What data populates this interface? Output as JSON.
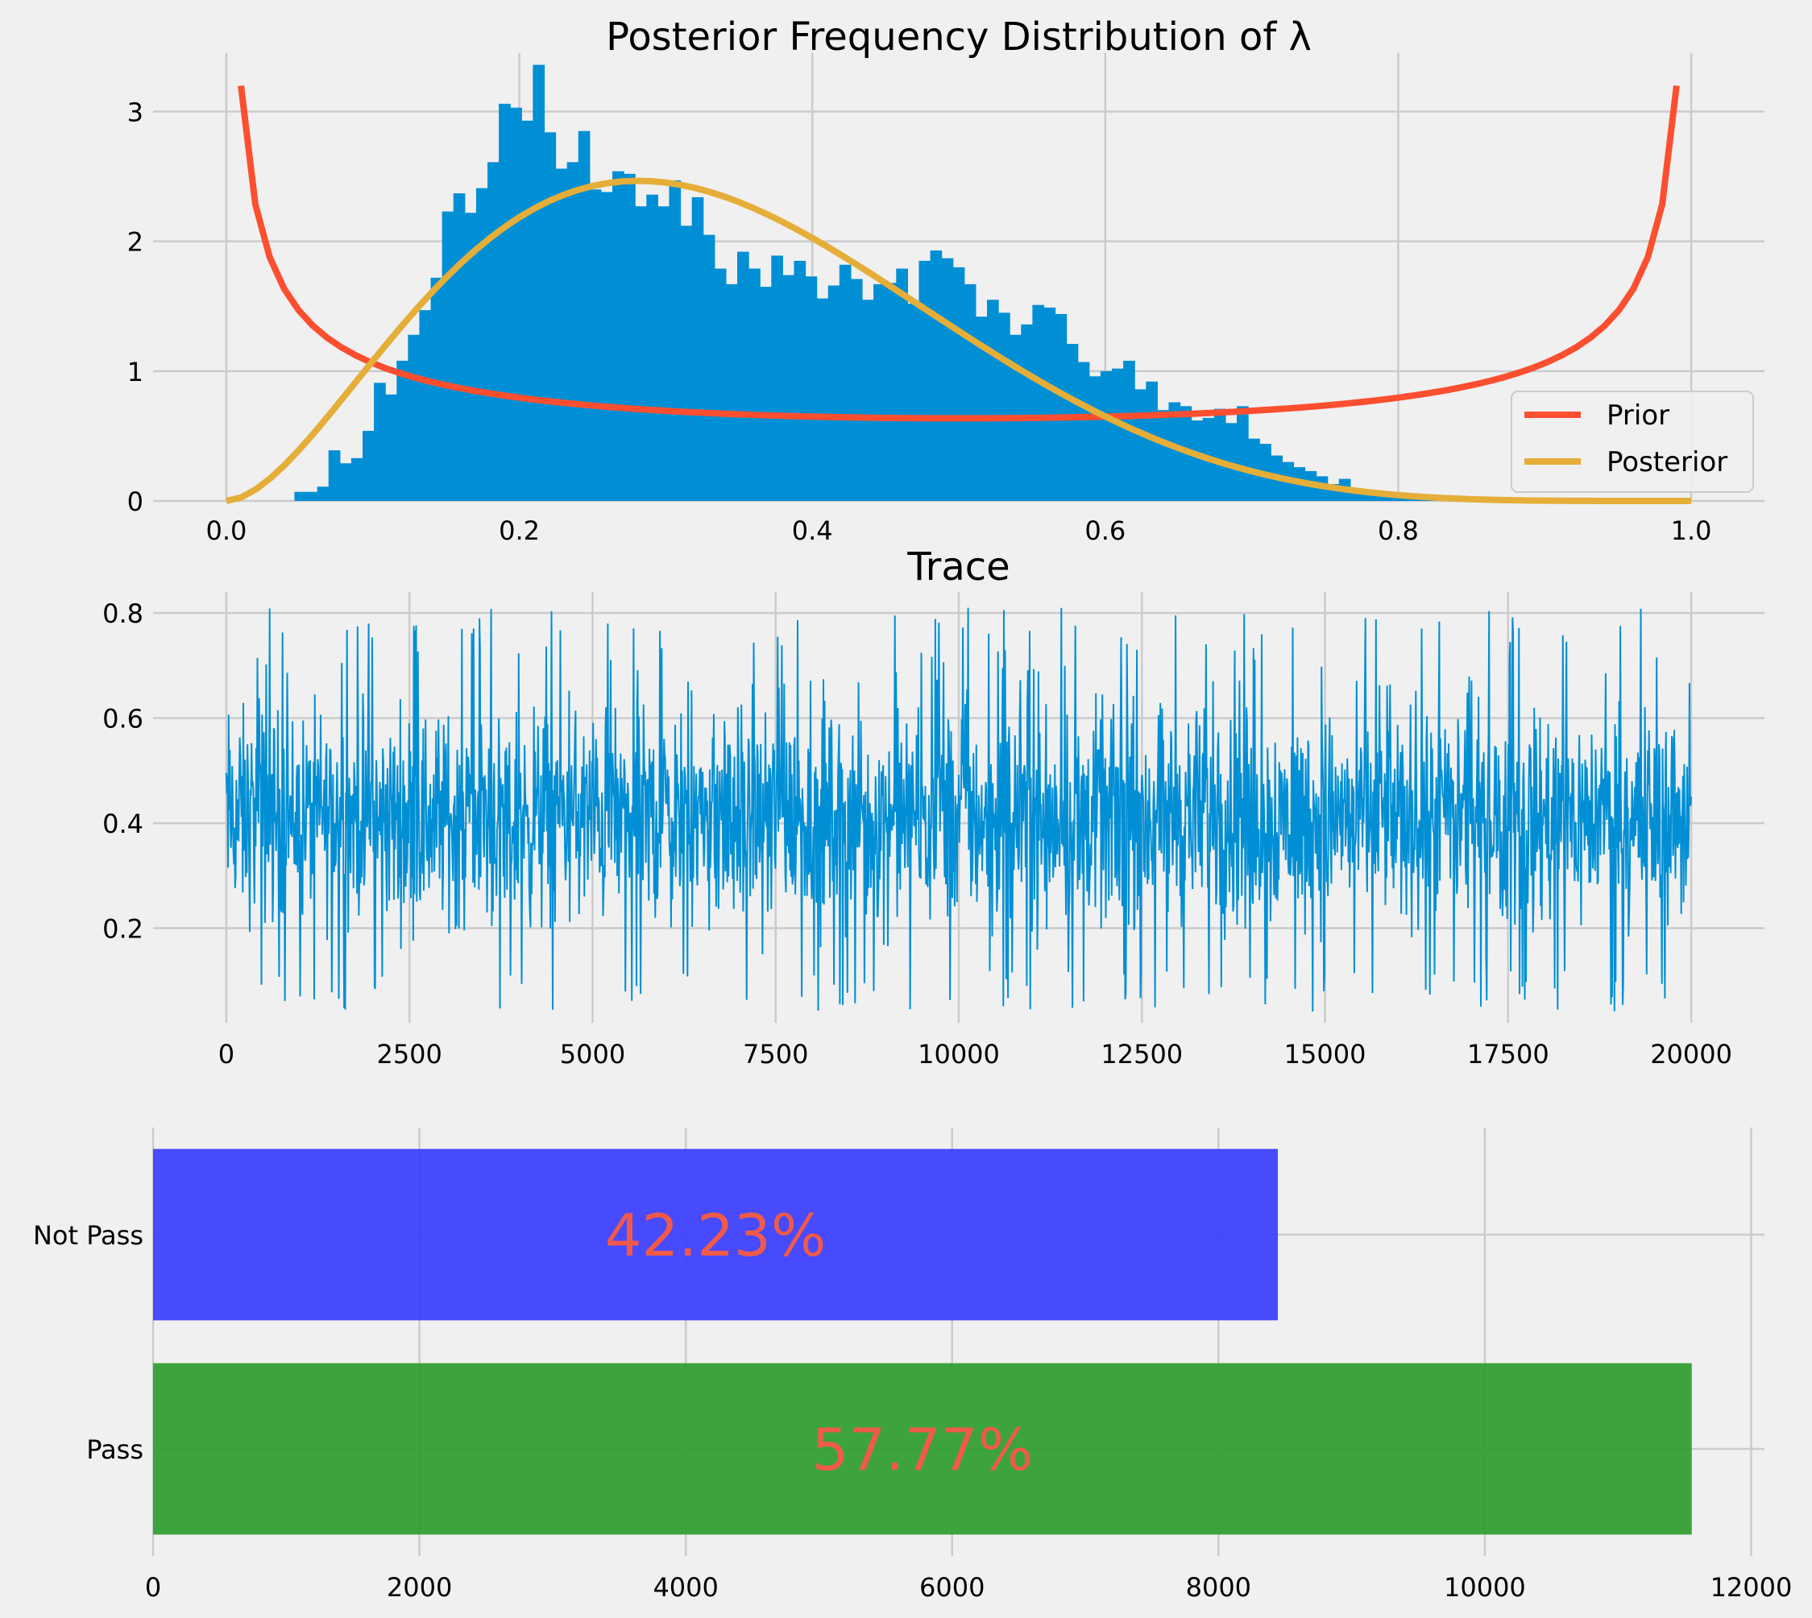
{
  "chart_data": [
    {
      "id": "posterior",
      "type": "histogram+line",
      "title": "Posterior Frequency Distribution of λ",
      "xlabel": "",
      "ylabel": "",
      "xlim": [
        -0.05,
        1.05
      ],
      "ylim": [
        0,
        3.45
      ],
      "xticks": [
        0.0,
        0.2,
        0.4,
        0.6,
        0.8,
        1.0
      ],
      "xtick_labels": [
        "0.0",
        "0.2",
        "0.4",
        "0.6",
        "0.8",
        "1.0"
      ],
      "yticks": [
        0,
        1,
        2,
        3
      ],
      "ytick_labels": [
        "0",
        "1",
        "2",
        "3"
      ],
      "grid": true,
      "legend_position": "lower right",
      "histogram": {
        "bin_start": 0.0,
        "bin_width": 0.00775,
        "heights": [
          0,
          0,
          0,
          0,
          0,
          0,
          0.07,
          0.07,
          0.11,
          0.39,
          0.29,
          0.33,
          0.54,
          0.91,
          0.82,
          1.08,
          1.28,
          1.47,
          1.72,
          2.23,
          2.37,
          2.22,
          2.41,
          2.61,
          3.06,
          3.03,
          2.93,
          3.36,
          2.84,
          2.56,
          2.61,
          2.85,
          2.4,
          2.38,
          2.54,
          2.52,
          2.27,
          2.36,
          2.27,
          2.47,
          2.12,
          2.34,
          2.05,
          1.79,
          1.67,
          1.92,
          1.79,
          1.65,
          1.89,
          1.74,
          1.85,
          1.73,
          1.56,
          1.66,
          1.82,
          1.71,
          1.55,
          1.67,
          1.68,
          1.79,
          1.52,
          1.85,
          1.93,
          1.87,
          1.8,
          1.67,
          1.42,
          1.55,
          1.45,
          1.28,
          1.36,
          1.51,
          1.49,
          1.44,
          1.21,
          1.07,
          0.96,
          1.0,
          1.02,
          1.08,
          0.86,
          0.92,
          0.7,
          0.76,
          0.73,
          0.62,
          0.64,
          0.71,
          0.6,
          0.73,
          0.48,
          0.44,
          0.35,
          0.3,
          0.26,
          0.23,
          0.19,
          0.13,
          0.17,
          0.06,
          0.08,
          0.04,
          0.05,
          0.03,
          0.02,
          0.02,
          0.01,
          0.01,
          0.01
        ],
        "color": "#008fd5"
      },
      "series": [
        {
          "name": "Prior",
          "distribution": "Beta(0.5, 0.5)",
          "x_range": [
            0.01,
            0.99
          ],
          "color": "#fc4f30"
        },
        {
          "name": "Posterior",
          "distribution": "Beta(2.8, 5.6)",
          "x_range": [
            0.0,
            1.0
          ],
          "color": "#e5ae38"
        }
      ]
    },
    {
      "id": "trace",
      "type": "line",
      "title": "Trace",
      "xlabel": "",
      "ylabel": "",
      "xlim": [
        -1000,
        21000
      ],
      "ylim": [
        0.02,
        0.84
      ],
      "xticks": [
        0,
        2500,
        5000,
        7500,
        10000,
        12500,
        15000,
        17500,
        20000
      ],
      "xtick_labels": [
        "0",
        "2500",
        "5000",
        "7500",
        "10000",
        "12500",
        "15000",
        "17500",
        "20000"
      ],
      "yticks": [
        0.2,
        0.4,
        0.6,
        0.8
      ],
      "ytick_labels": [
        "0.2",
        "0.4",
        "0.6",
        "0.8"
      ],
      "grid": true,
      "n_samples": 20000,
      "value_range": [
        0.04,
        0.81
      ],
      "typical_band": [
        0.12,
        0.65
      ],
      "color": "#008fd5"
    },
    {
      "id": "pass-bar",
      "type": "bar",
      "orientation": "horizontal",
      "categories": [
        "Pass",
        "Not Pass"
      ],
      "values": [
        11554,
        8446
      ],
      "colors": [
        "#2e9d2e",
        "#3a3cff"
      ],
      "data_labels": [
        "57.77%",
        "42.23%"
      ],
      "data_label_color": "#f15a48",
      "xlim": [
        0,
        12100
      ],
      "xticks": [
        0,
        2000,
        4000,
        6000,
        8000,
        10000,
        12000
      ],
      "xtick_labels": [
        "0",
        "2000",
        "4000",
        "6000",
        "8000",
        "10000",
        "12000"
      ],
      "grid": true
    }
  ]
}
